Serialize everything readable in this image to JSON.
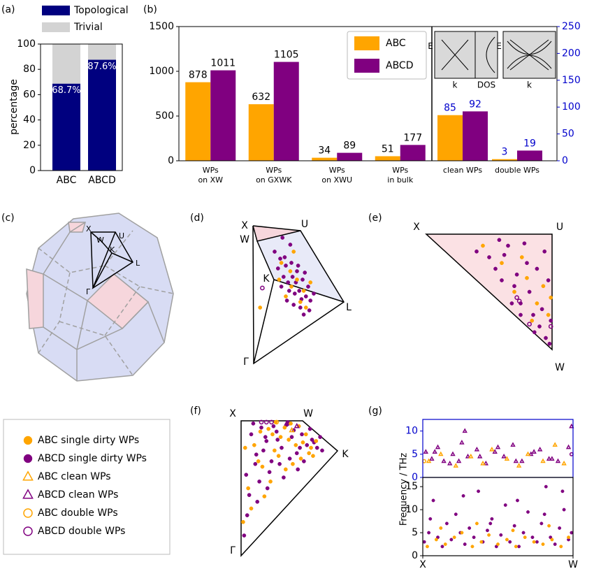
{
  "chart_data": [
    {
      "type": "bar",
      "stacked": true,
      "panel_label": "(a)",
      "ylabel": "percentage",
      "categories": [
        "ABC",
        "ABCD"
      ],
      "series": [
        {
          "name": "Topological",
          "color": "#00007f",
          "values": [
            68.7,
            87.6
          ],
          "value_labels": [
            "68.7%",
            "87.6%"
          ]
        },
        {
          "name": "Trivial",
          "color": "#d3d3d3",
          "values": [
            31.3,
            12.4
          ]
        }
      ],
      "ylim": [
        0,
        100
      ],
      "yticks": [
        0,
        20,
        40,
        60,
        80,
        100
      ]
    },
    {
      "type": "bar",
      "panel_label": "(b)",
      "categories": [
        "WPs\non XW",
        "WPs\non GXWK",
        "WPs\non XWU",
        "WPs\nin bulk"
      ],
      "categories2": [
        "clean WPs",
        "double WPs"
      ],
      "series": [
        {
          "name": "ABC",
          "color": "#ffa500",
          "values": [
            878,
            632,
            34,
            51
          ],
          "values2": [
            85,
            3
          ]
        },
        {
          "name": "ABCD",
          "color": "#800080",
          "values": [
            1011,
            1105,
            89,
            177
          ],
          "values2": [
            92,
            19
          ]
        }
      ],
      "ylim": [
        0,
        1500
      ],
      "yticks": [
        0,
        500,
        1000,
        1500
      ],
      "y2lim": [
        0,
        250
      ],
      "y2ticks": [
        0,
        50,
        100,
        150,
        200,
        250
      ],
      "y2_color": "#0000cc",
      "insets": [
        {
          "ylabel": "E",
          "xlabel": "k",
          "xlabel2": "DOS"
        },
        {
          "ylabel": "E",
          "xlabel": "k"
        }
      ]
    },
    {
      "type": "scatter",
      "panel_label": "(d)",
      "vertex_labels": [
        "X",
        "U",
        "W",
        "K",
        "L",
        "Γ"
      ],
      "series": [
        {
          "color": "#800080",
          "marker": "circle",
          "filled": true,
          "x": [
            0.3,
            0.35,
            0.4,
            0.45,
            0.5,
            0.55,
            0.6,
            0.38,
            0.42,
            0.48,
            0.52,
            0.58,
            0.62,
            0.33,
            0.44,
            0.47,
            0.53,
            0.57,
            0.36,
            0.41,
            0.46,
            0.51,
            0.56,
            0.61,
            0.39,
            0.43,
            0.49,
            0.54,
            0.65,
            0.37
          ],
          "y": [
            0.8,
            0.75,
            0.7,
            0.72,
            0.66,
            0.6,
            0.55,
            0.62,
            0.58,
            0.5,
            0.52,
            0.48,
            0.45,
            0.68,
            0.85,
            0.42,
            0.4,
            0.65,
            0.55,
            0.45,
            0.62,
            0.7,
            0.35,
            0.38,
            0.76,
            0.52,
            0.58,
            0.46,
            0.5,
            0.9
          ]
        },
        {
          "color": "#ffa500",
          "marker": "circle",
          "filled": true,
          "x": [
            0.36,
            0.44,
            0.5,
            0.56,
            0.4,
            0.62,
            0.47,
            0.53,
            0.34,
            0.58,
            0.17,
            0.45
          ],
          "y": [
            0.72,
            0.66,
            0.6,
            0.52,
            0.48,
            0.58,
            0.8,
            0.44,
            0.6,
            0.4,
            0.4,
            0.55
          ]
        },
        {
          "color": "#800080",
          "marker": "circle",
          "filled": false,
          "x": [
            0.19
          ],
          "y": [
            0.54
          ]
        }
      ]
    },
    {
      "type": "scatter",
      "panel_label": "(e)",
      "vertex_labels": [
        "X",
        "U",
        "W"
      ],
      "series": [
        {
          "color": "#800080",
          "marker": "circle",
          "filled": true,
          "x": [
            0.4,
            0.5,
            0.55,
            0.6,
            0.65,
            0.7,
            0.75,
            0.8,
            0.85,
            0.9,
            0.95,
            0.98,
            0.62,
            0.72,
            0.82,
            0.92,
            0.97,
            0.68,
            0.78,
            0.88,
            0.99,
            0.58,
            0.86,
            0.94,
            0.75
          ],
          "y": [
            0.85,
            0.8,
            0.7,
            0.6,
            0.9,
            0.55,
            0.4,
            0.75,
            0.3,
            0.2,
            0.1,
            0.05,
            0.82,
            0.65,
            0.5,
            0.35,
            0.6,
            0.4,
            0.92,
            0.7,
            0.25,
            0.95,
            0.15,
            0.85,
            0.3
          ]
        },
        {
          "color": "#ffa500",
          "marker": "circle",
          "filled": true,
          "x": [
            0.45,
            0.6,
            0.7,
            0.8,
            0.88,
            0.93,
            0.97,
            0.76,
            0.84,
            0.99
          ],
          "y": [
            0.9,
            0.75,
            0.5,
            0.62,
            0.4,
            0.55,
            0.3,
            0.8,
            0.25,
            0.45
          ]
        },
        {
          "color": "#800080",
          "marker": "circle",
          "filled": false,
          "x": [
            0.72,
            0.74,
            0.82,
            0.99
          ],
          "y": [
            0.45,
            0.42,
            0.22,
            0.2
          ]
        }
      ]
    },
    {
      "type": "scatter",
      "panel_label": "(f)",
      "vertex_labels": [
        "X",
        "W",
        "K",
        "Γ"
      ],
      "series": [
        {
          "color": "#800080",
          "marker": "circle",
          "filled": true,
          "x": [
            0.05,
            0.1,
            0.15,
            0.2,
            0.25,
            0.3,
            0.35,
            0.4,
            0.45,
            0.5,
            0.55,
            0.6,
            0.65,
            0.7,
            0.75,
            0.8,
            0.08,
            0.18,
            0.28,
            0.38,
            0.48,
            0.58,
            0.68,
            0.78,
            0.12,
            0.22,
            0.32,
            0.42,
            0.52,
            0.62,
            0.72,
            0.06,
            0.16,
            0.26,
            0.36,
            0.46,
            0.56,
            0.03,
            0.14,
            0.24
          ],
          "y": [
            0.6,
            0.9,
            0.75,
            0.95,
            0.85,
            0.7,
            0.92,
            0.8,
            0.97,
            0.88,
            0.76,
            0.9,
            0.82,
            0.86,
            0.8,
            0.78,
            0.45,
            0.55,
            0.62,
            0.68,
            0.72,
            0.8,
            0.94,
            0.88,
            0.98,
            0.78,
            0.96,
            0.58,
            0.93,
            0.7,
            0.84,
            0.3,
            0.4,
            0.5,
            0.86,
            0.99,
            0.64,
            0.15,
            0.68,
            0.88
          ]
        },
        {
          "color": "#ffa500",
          "marker": "circle",
          "filled": true,
          "x": [
            0.07,
            0.13,
            0.21,
            0.27,
            0.33,
            0.39,
            0.44,
            0.49,
            0.54,
            0.59,
            0.64,
            0.69,
            0.74,
            0.1,
            0.19,
            0.29,
            0.37,
            0.47,
            0.57,
            0.67,
            0.04,
            0.23,
            0.34,
            0.51,
            0.61,
            0.71,
            0.02,
            0.17,
            0.31,
            0.43
          ],
          "y": [
            0.5,
            0.82,
            0.66,
            0.94,
            0.78,
            0.88,
            0.64,
            0.98,
            0.82,
            0.72,
            0.9,
            0.8,
            0.85,
            0.35,
            0.92,
            0.55,
            0.74,
            0.86,
            0.96,
            0.76,
            0.8,
            0.44,
            0.99,
            0.68,
            0.84,
            0.74,
            0.25,
            0.7,
            0.9,
            0.95
          ]
        },
        {
          "color": "#800080",
          "marker": "circle",
          "filled": false,
          "x": [
            0.2,
            0.25,
            0.3
          ],
          "y": [
            0.99,
            0.99,
            0.99
          ]
        },
        {
          "color": "#ffa500",
          "marker": "circle",
          "filled": false,
          "x": [
            0.35
          ],
          "y": [
            0.99
          ]
        },
        {
          "color": "#800080",
          "marker": "triangle",
          "filled": false,
          "x": [
            0.45,
            0.55
          ],
          "y": [
            0.98,
            0.96
          ]
        },
        {
          "color": "#ffa500",
          "marker": "triangle",
          "filled": false,
          "x": [
            0.5
          ],
          "y": [
            0.93
          ]
        }
      ]
    },
    {
      "type": "scatter",
      "panel_label": "(g)",
      "ylabel": "Frequency / THz",
      "xlim": [
        0,
        1
      ],
      "xticks": [
        {
          "value": 0,
          "label": "X"
        },
        {
          "value": 1,
          "label": "W"
        }
      ],
      "panels": [
        {
          "ylim": [
            0,
            12.5
          ],
          "yticks": [
            0,
            5,
            10
          ],
          "frame_color": "#0000cc",
          "series": [
            {
              "color": "#800080",
              "marker": "triangle",
              "filled": false,
              "x": [
                0.02,
                0.06,
                0.1,
                0.14,
                0.2,
                0.26,
                0.3,
                0.36,
                0.42,
                0.48,
                0.54,
                0.6,
                0.66,
                0.72,
                0.78,
                0.84,
                0.9,
                0.97,
                0.08,
                0.18,
                0.28,
                0.38,
                0.5,
                0.62,
                0.74,
                0.86,
                0.99,
                0.24
              ],
              "y": [
                5.5,
                4.0,
                6.5,
                3.5,
                5.0,
                7.5,
                4.5,
                6.0,
                3.0,
                5.5,
                4.5,
                7.0,
                3.5,
                5.0,
                6.0,
                4.0,
                3.5,
                6.5,
                5.5,
                3.0,
                10.0,
                4.5,
                6.5,
                3.5,
                5.5,
                4.0,
                11.0,
                3.5
              ]
            },
            {
              "color": "#ffa500",
              "marker": "triangle",
              "filled": false,
              "x": [
                0.04,
                0.12,
                0.22,
                0.32,
                0.4,
                0.46,
                0.56,
                0.64,
                0.7,
                0.8,
                0.88,
                0.94
              ],
              "y": [
                3.5,
                5.0,
                2.5,
                4.5,
                3.0,
                6.0,
                4.0,
                2.5,
                5.0,
                3.5,
                7.0,
                3.0
              ]
            },
            {
              "color": "#ffa500",
              "marker": "circle",
              "filled": false,
              "x": [
                0.01
              ],
              "y": [
                3.5
              ]
            },
            {
              "color": "#800080",
              "marker": "circle",
              "filled": false,
              "x": [
                0.99
              ],
              "y": [
                5.0
              ]
            }
          ]
        },
        {
          "ylim": [
            0,
            17
          ],
          "yticks": [
            0,
            5,
            10,
            15
          ],
          "series": [
            {
              "color": "#800080",
              "marker": "circle",
              "filled": true,
              "x": [
                0.01,
                0.04,
                0.07,
                0.1,
                0.13,
                0.16,
                0.19,
                0.22,
                0.25,
                0.28,
                0.31,
                0.34,
                0.37,
                0.4,
                0.43,
                0.46,
                0.49,
                0.52,
                0.55,
                0.58,
                0.61,
                0.64,
                0.67,
                0.7,
                0.73,
                0.76,
                0.79,
                0.82,
                0.85,
                0.88,
                0.91,
                0.94,
                0.97,
                0.99,
                0.05,
                0.27,
                0.45,
                0.63,
                0.81,
                0.93
              ],
              "y": [
                3,
                5,
                12,
                4,
                2,
                7,
                3.5,
                9,
                5,
                2.5,
                6,
                4,
                14,
                3,
                5.5,
                8,
                2,
                4.5,
                11,
                3,
                6.5,
                2,
                5,
                9.5,
                4,
                3,
                7,
                15,
                4,
                2.5,
                6,
                10,
                3.5,
                5,
                8,
                13,
                7,
                12,
                9,
                14
              ]
            },
            {
              "color": "#ffa500",
              "marker": "circle",
              "filled": true,
              "x": [
                0.03,
                0.09,
                0.15,
                0.21,
                0.26,
                0.33,
                0.39,
                0.44,
                0.5,
                0.56,
                0.62,
                0.68,
                0.74,
                0.8,
                0.86,
                0.92,
                0.97,
                0.12,
                0.36,
                0.6,
                0.84
              ],
              "y": [
                2,
                3.5,
                2.5,
                4,
                5,
                2,
                3,
                4.5,
                2.5,
                3.5,
                2,
                4,
                3,
                2.5,
                3.5,
                2,
                4,
                6,
                7,
                5.5,
                6.5
              ]
            }
          ]
        }
      ]
    }
  ],
  "brillouin_zone": {
    "panel_label": "(c)",
    "labels": [
      "X",
      "W",
      "U",
      "K",
      "L",
      "Γ"
    ]
  },
  "legend": {
    "entries": [
      {
        "name": "ABC single dirty WPs",
        "color": "#ffa500",
        "marker": "circle",
        "filled": true
      },
      {
        "name": "ABCD single dirty WPs",
        "color": "#800080",
        "marker": "circle",
        "filled": true
      },
      {
        "name": "ABC clean WPs",
        "color": "#ffa500",
        "marker": "triangle",
        "filled": false
      },
      {
        "name": "ABCD clean WPs",
        "color": "#800080",
        "marker": "triangle",
        "filled": false
      },
      {
        "name": "ABC double WPs",
        "color": "#ffa500",
        "marker": "circle",
        "filled": false
      },
      {
        "name": "ABCD double WPs",
        "color": "#800080",
        "marker": "circle",
        "filled": false
      }
    ]
  }
}
